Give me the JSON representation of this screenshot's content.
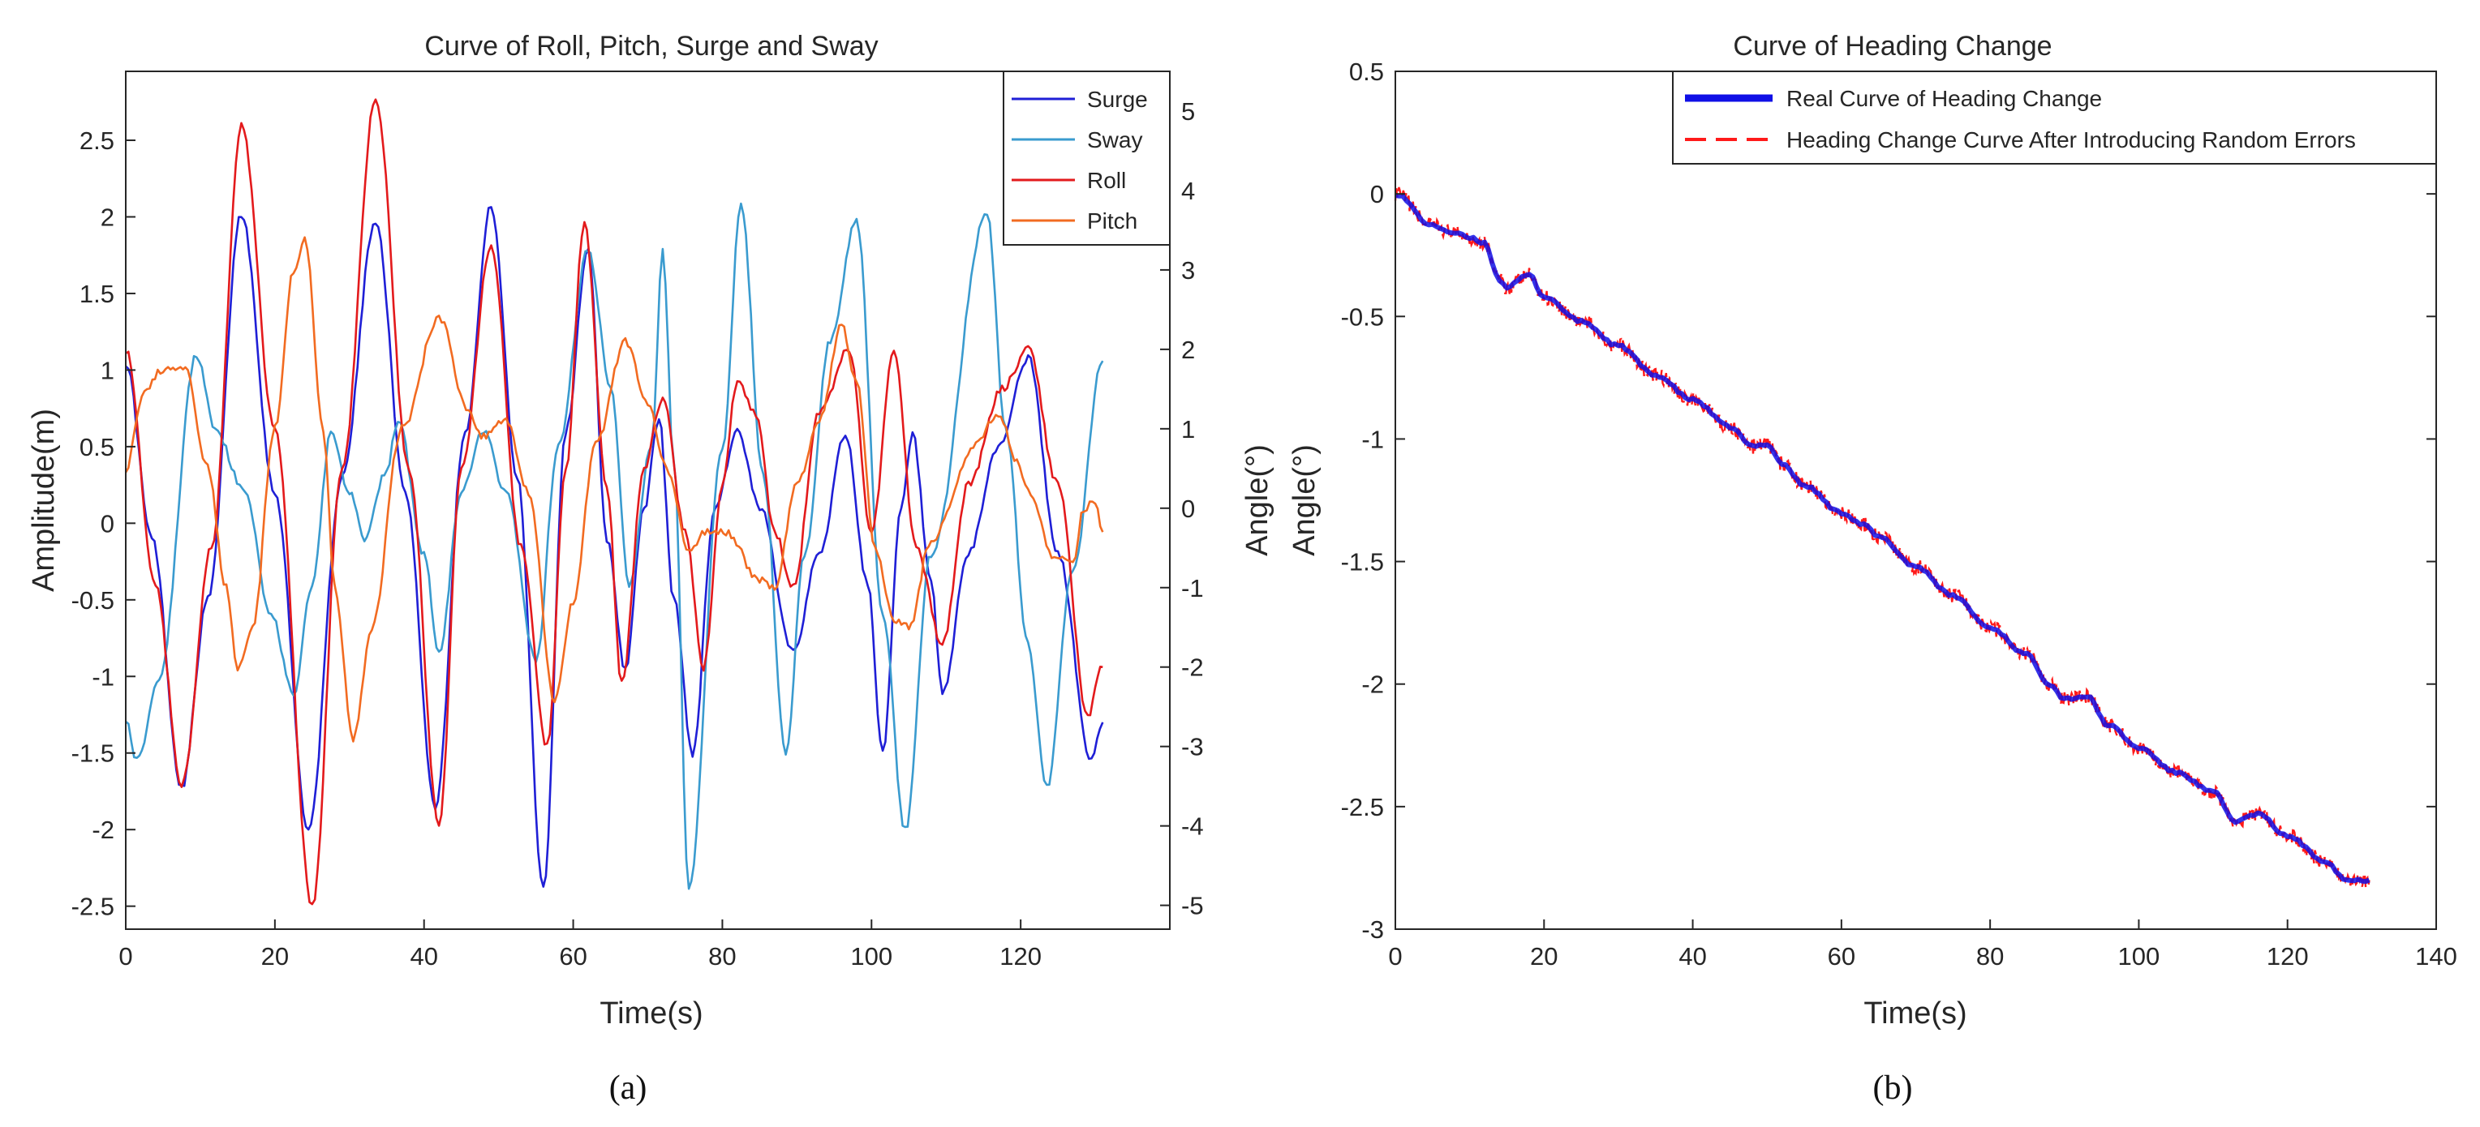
{
  "chart_data": [
    {
      "panel": "a",
      "type": "line",
      "title": "Curve of Roll, Pitch, Surge and Sway",
      "xlabel": "Time(s)",
      "ylabel_left": "Amplitude(m)",
      "ylabel_right": "Angle(°)",
      "xlim": [
        0,
        140
      ],
      "ylim_left": [
        -2.65,
        2.95
      ],
      "ylim_right": [
        -5.3,
        5.5
      ],
      "x_ticks": [
        0,
        20,
        40,
        60,
        80,
        100,
        120
      ],
      "x_tick_labels": [
        "0",
        "20",
        "40",
        "60",
        "80",
        "100",
        "120"
      ],
      "y_ticks_left": [
        -2.5,
        -2,
        -1.5,
        -1,
        -0.5,
        0,
        0.5,
        1,
        1.5,
        2,
        2.5
      ],
      "y_tick_labels_left": [
        "-2.5",
        "-2",
        "-1.5",
        "-1",
        "-0.5",
        "0",
        "0.5",
        "1",
        "1.5",
        "2",
        "2.5"
      ],
      "y_ticks_right": [
        -5,
        -4,
        -3,
        -2,
        -1,
        0,
        1,
        2,
        3,
        4,
        5
      ],
      "y_tick_labels_right": [
        "-5",
        "-4",
        "-3",
        "-2",
        "-1",
        "0",
        "1",
        "2",
        "3",
        "4",
        "5"
      ],
      "legend_position": "top-right",
      "series": [
        {
          "name": "Surge",
          "axis": "left",
          "color": "#1f1fd6",
          "points": [
            [
              0,
              1.05
            ],
            [
              3.5,
              -0.1
            ],
            [
              7.5,
              -1.72
            ],
            [
              11,
              -0.5
            ],
            [
              15.5,
              2.02
            ],
            [
              20,
              0.2
            ],
            [
              24.5,
              -2.0
            ],
            [
              29,
              0.3
            ],
            [
              33.5,
              1.98
            ],
            [
              37.5,
              0.2
            ],
            [
              41.5,
              -1.85
            ],
            [
              45.5,
              0.6
            ],
            [
              49,
              2.07
            ],
            [
              52.5,
              0.3
            ],
            [
              56,
              -2.38
            ],
            [
              59,
              0.6
            ],
            [
              62,
              1.8
            ],
            [
              64.5,
              -0.1
            ],
            [
              67,
              -0.95
            ],
            [
              69.5,
              0.1
            ],
            [
              71.5,
              0.68
            ],
            [
              73.5,
              -0.5
            ],
            [
              76,
              -1.5
            ],
            [
              79,
              0.1
            ],
            [
              82,
              0.6
            ],
            [
              85,
              0.1
            ],
            [
              89.5,
              -0.83
            ],
            [
              93,
              -0.2
            ],
            [
              96.5,
              0.58
            ],
            [
              99.5,
              -0.4
            ],
            [
              101.5,
              -1.5
            ],
            [
              104,
              0.1
            ],
            [
              105.5,
              0.58
            ],
            [
              108,
              -0.4
            ],
            [
              109.5,
              -1.12
            ],
            [
              113,
              -0.2
            ],
            [
              117,
              0.5
            ],
            [
              121,
              1.08
            ],
            [
              125,
              -0.2
            ],
            [
              129.5,
              -1.55
            ],
            [
              131,
              -1.3
            ]
          ]
        },
        {
          "name": "Sway",
          "axis": "left",
          "color": "#3a9bcf",
          "points": [
            [
              0,
              -1.27
            ],
            [
              1.5,
              -1.55
            ],
            [
              4.5,
              -1.0
            ],
            [
              9.5,
              1.1
            ],
            [
              12,
              0.6
            ],
            [
              16,
              0.2
            ],
            [
              19.5,
              -0.6
            ],
            [
              22.5,
              -1.12
            ],
            [
              25,
              -0.4
            ],
            [
              27.5,
              0.58
            ],
            [
              30,
              0.2
            ],
            [
              32,
              -0.1
            ],
            [
              35,
              0.35
            ],
            [
              36.5,
              0.68
            ],
            [
              40,
              -0.2
            ],
            [
              42,
              -0.85
            ],
            [
              45,
              0.2
            ],
            [
              48,
              0.6
            ],
            [
              51,
              0.2
            ],
            [
              55,
              -0.9
            ],
            [
              58,
              0.5
            ],
            [
              62,
              1.78
            ],
            [
              65,
              0.9
            ],
            [
              67.5,
              -0.4
            ],
            [
              70.5,
              0.5
            ],
            [
              72,
              1.78
            ],
            [
              73.5,
              0.4
            ],
            [
              75.5,
              -2.38
            ],
            [
              80,
              0.5
            ],
            [
              82.5,
              2.08
            ],
            [
              85.5,
              0.3
            ],
            [
              88.5,
              -1.5
            ],
            [
              91,
              -0.2
            ],
            [
              94.5,
              1.2
            ],
            [
              98,
              1.98
            ],
            [
              101.5,
              -0.6
            ],
            [
              104.5,
              -2.0
            ],
            [
              108,
              -0.2
            ],
            [
              115.5,
              2.02
            ],
            [
              118,
              0.6
            ],
            [
              121,
              -0.8
            ],
            [
              123.5,
              -1.72
            ],
            [
              127,
              -0.3
            ],
            [
              131,
              1.06
            ]
          ]
        },
        {
          "name": "Roll",
          "axis": "right",
          "color": "#e31a1c",
          "points": [
            [
              0,
              2.0
            ],
            [
              4,
              -1.0
            ],
            [
              7.5,
              -3.5
            ],
            [
              11.5,
              -0.5
            ],
            [
              15.5,
              4.8
            ],
            [
              20,
              1.0
            ],
            [
              25,
              -5.0
            ],
            [
              29,
              0.5
            ],
            [
              33.5,
              5.15
            ],
            [
              38,
              0.5
            ],
            [
              42,
              -4.0
            ],
            [
              45,
              0.5
            ],
            [
              49,
              3.3
            ],
            [
              53,
              -0.5
            ],
            [
              56.5,
              -3.0
            ],
            [
              59,
              0.5
            ],
            [
              61.5,
              3.6
            ],
            [
              64.5,
              0.3
            ],
            [
              66.5,
              -2.2
            ],
            [
              69.5,
              0.5
            ],
            [
              72,
              1.4
            ],
            [
              75,
              -0.3
            ],
            [
              77.5,
              -2.0
            ],
            [
              80,
              0.3
            ],
            [
              82,
              1.6
            ],
            [
              84.5,
              1.2
            ],
            [
              87,
              -0.3
            ],
            [
              89.5,
              -1.0
            ],
            [
              93,
              1.2
            ],
            [
              97,
              2.0
            ],
            [
              100,
              -0.3
            ],
            [
              103,
              2.0
            ],
            [
              106,
              -0.5
            ],
            [
              109.5,
              -1.7
            ],
            [
              113,
              0.3
            ],
            [
              117.5,
              1.5
            ],
            [
              121,
              2.0
            ],
            [
              125,
              0.3
            ],
            [
              129,
              -2.6
            ],
            [
              131,
              -2.0
            ]
          ]
        },
        {
          "name": "Pitch",
          "axis": "right",
          "color": "#f26b21",
          "points": [
            [
              0,
              0.5
            ],
            [
              2.5,
              1.5
            ],
            [
              5,
              1.75
            ],
            [
              8,
              1.75
            ],
            [
              11,
              0.5
            ],
            [
              13.5,
              -1.0
            ],
            [
              15,
              -2.0
            ],
            [
              17,
              -1.5
            ],
            [
              20,
              1.0
            ],
            [
              22.5,
              3.0
            ],
            [
              24,
              3.4
            ],
            [
              26.5,
              1.0
            ],
            [
              28,
              -1.0
            ],
            [
              30.5,
              -2.9
            ],
            [
              33,
              -1.5
            ],
            [
              37,
              1.0
            ],
            [
              42,
              2.4
            ],
            [
              46,
              1.2
            ],
            [
              48,
              0.9
            ],
            [
              51,
              1.1
            ],
            [
              54,
              0.2
            ],
            [
              57.5,
              -2.4
            ],
            [
              60,
              -1.2
            ],
            [
              63,
              0.8
            ],
            [
              67,
              2.1
            ],
            [
              70,
              1.3
            ],
            [
              72.5,
              0.5
            ],
            [
              75.5,
              -0.5
            ],
            [
              78,
              -0.3
            ],
            [
              80.5,
              -0.3
            ],
            [
              85,
              -0.9
            ],
            [
              87,
              -1.0
            ],
            [
              90,
              0.3
            ],
            [
              93,
              1.1
            ],
            [
              96,
              2.3
            ],
            [
              98,
              1.6
            ],
            [
              100.5,
              -0.5
            ],
            [
              103,
              -1.4
            ],
            [
              105,
              -1.5
            ],
            [
              108,
              -0.4
            ],
            [
              114,
              0.8
            ],
            [
              117,
              1.2
            ],
            [
              119.5,
              0.6
            ],
            [
              121,
              0.2
            ],
            [
              124.5,
              -0.6
            ],
            [
              127,
              -0.7
            ],
            [
              128.5,
              0.0
            ],
            [
              130,
              0.1
            ],
            [
              131,
              -0.3
            ]
          ]
        }
      ]
    },
    {
      "panel": "b",
      "type": "line",
      "title": "Curve of Heading Change",
      "xlabel": "Time(s)",
      "ylabel": "Angle(°)",
      "xlim": [
        0,
        140
      ],
      "ylim": [
        -3,
        0.5
      ],
      "x_ticks": [
        0,
        20,
        40,
        60,
        80,
        100,
        120,
        140
      ],
      "x_tick_labels": [
        "0",
        "20",
        "40",
        "60",
        "80",
        "100",
        "120",
        "140"
      ],
      "y_ticks": [
        -3,
        -2.5,
        -2,
        -1.5,
        -1,
        -0.5,
        0,
        0.5
      ],
      "y_tick_labels": [
        "-3",
        "-2.5",
        "-2",
        "-1.5",
        "-1",
        "-0.5",
        "0",
        "0.5"
      ],
      "legend_position": "top-right",
      "series": [
        {
          "name": "Real Curve of Heading Change",
          "color": "#1010e6",
          "style": "solid",
          "points": [
            [
              0,
              0
            ],
            [
              5,
              -0.13
            ],
            [
              8,
              -0.16
            ],
            [
              10,
              -0.18
            ],
            [
              12,
              -0.2
            ],
            [
              14,
              -0.35
            ],
            [
              15,
              -0.38
            ],
            [
              18,
              -0.33
            ],
            [
              20,
              -0.42
            ],
            [
              25,
              -0.52
            ],
            [
              30,
              -0.62
            ],
            [
              35,
              -0.74
            ],
            [
              40,
              -0.84
            ],
            [
              45,
              -0.95
            ],
            [
              48,
              -1.03
            ],
            [
              50,
              -1.02
            ],
            [
              52,
              -1.1
            ],
            [
              55,
              -1.19
            ],
            [
              60,
              -1.3
            ],
            [
              63,
              -1.35
            ],
            [
              65,
              -1.4
            ],
            [
              70,
              -1.52
            ],
            [
              75,
              -1.64
            ],
            [
              80,
              -1.77
            ],
            [
              85,
              -1.88
            ],
            [
              88,
              -2.0
            ],
            [
              90,
              -2.06
            ],
            [
              93,
              -2.05
            ],
            [
              96,
              -2.17
            ],
            [
              100,
              -2.26
            ],
            [
              105,
              -2.36
            ],
            [
              110,
              -2.44
            ],
            [
              113,
              -2.56
            ],
            [
              116,
              -2.53
            ],
            [
              120,
              -2.62
            ],
            [
              125,
              -2.72
            ],
            [
              128,
              -2.8
            ],
            [
              131,
              -2.8
            ]
          ]
        },
        {
          "name": "Heading Change Curve After Introducing Random Errors",
          "color": "#ff1a1a",
          "style": "dashed",
          "points": [
            [
              0,
              0
            ],
            [
              5,
              -0.13
            ],
            [
              8,
              -0.16
            ],
            [
              10,
              -0.18
            ],
            [
              12,
              -0.2
            ],
            [
              14,
              -0.35
            ],
            [
              15,
              -0.38
            ],
            [
              18,
              -0.33
            ],
            [
              20,
              -0.42
            ],
            [
              25,
              -0.52
            ],
            [
              30,
              -0.62
            ],
            [
              35,
              -0.74
            ],
            [
              40,
              -0.84
            ],
            [
              45,
              -0.95
            ],
            [
              48,
              -1.03
            ],
            [
              50,
              -1.02
            ],
            [
              52,
              -1.1
            ],
            [
              55,
              -1.19
            ],
            [
              60,
              -1.3
            ],
            [
              63,
              -1.35
            ],
            [
              65,
              -1.4
            ],
            [
              70,
              -1.52
            ],
            [
              75,
              -1.64
            ],
            [
              80,
              -1.77
            ],
            [
              85,
              -1.88
            ],
            [
              88,
              -2.0
            ],
            [
              90,
              -2.06
            ],
            [
              93,
              -2.05
            ],
            [
              96,
              -2.17
            ],
            [
              100,
              -2.26
            ],
            [
              105,
              -2.36
            ],
            [
              110,
              -2.44
            ],
            [
              113,
              -2.56
            ],
            [
              116,
              -2.53
            ],
            [
              120,
              -2.62
            ],
            [
              125,
              -2.72
            ],
            [
              128,
              -2.8
            ],
            [
              131,
              -2.8
            ]
          ],
          "random_error_amplitude": 0.06
        }
      ]
    }
  ],
  "captions": {
    "a": "(a)",
    "b": "(b)"
  }
}
